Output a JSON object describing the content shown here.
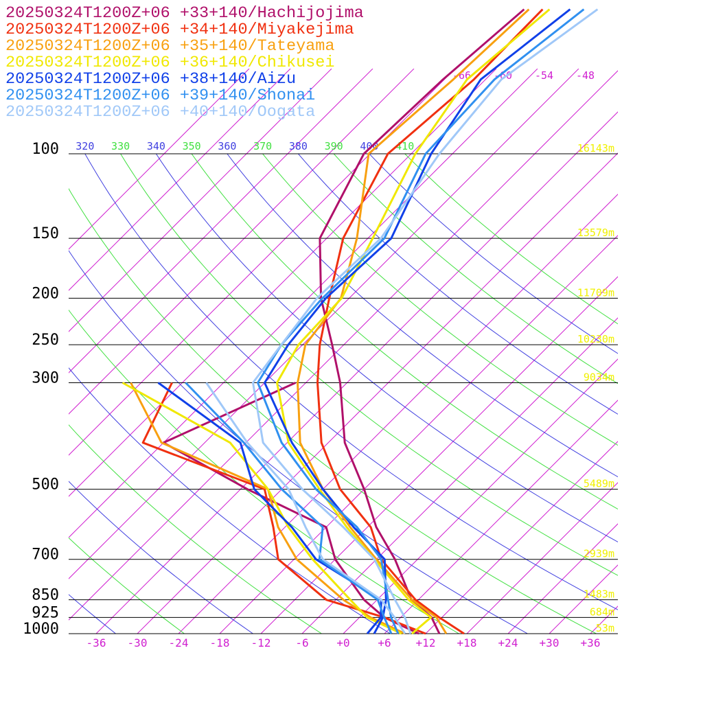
{
  "chart_data": {
    "type": "skewt",
    "yscale": "log",
    "ylim": [
      1000,
      100
    ],
    "yticks": [
      1000,
      925,
      850,
      700,
      500,
      300,
      250,
      200,
      150,
      100
    ],
    "height_labels": [
      "53m",
      "684m",
      "1483m",
      "2939m",
      "5489m",
      "9034m",
      "10230m",
      "11709m",
      "13579m",
      "16143m"
    ],
    "xlim": [
      -40,
      40
    ],
    "xticks": [
      -36,
      -30,
      -24,
      -18,
      -12,
      -6,
      {
        "value": 0,
        "label": "+0"
      },
      {
        "value": 6,
        "label": "+6"
      },
      {
        "value": 12,
        "label": "+12"
      },
      {
        "value": 18,
        "label": "+18"
      },
      {
        "value": 24,
        "label": "+24"
      },
      {
        "value": 30,
        "label": "+30"
      },
      {
        "value": 36,
        "label": "+36"
      }
    ],
    "isotherms": [
      -96,
      -90,
      -84,
      -78,
      -72,
      -66,
      -60,
      -54,
      -48,
      -42,
      -36,
      -30,
      -24,
      -18,
      -12,
      -6,
      0,
      6,
      12,
      18,
      24,
      30,
      36
    ],
    "isotherm_labels": [
      -66,
      -60,
      -54,
      -48
    ],
    "isotherm_color": "#d020d0",
    "dry_adiabats": [
      240,
      250,
      260,
      270,
      280,
      290,
      300,
      310,
      320,
      330,
      340,
      350,
      360,
      370,
      380,
      390,
      400,
      410
    ],
    "adiabat_colors": [
      "#4040e0",
      "#40e040"
    ],
    "height_label_color": "#f0f000",
    "levels": [
      1000,
      925,
      850,
      700,
      600,
      500,
      400,
      300,
      250,
      200,
      150,
      100,
      70,
      50
    ],
    "series": [
      {
        "name": "20250324T1200Z+06 +33+140/Hachijojima",
        "color": "#b0106a",
        "temperature": [
          14,
          10.5,
          5,
          -3.3,
          -10.7,
          -18,
          -27.6,
          -37,
          -43.7,
          -52.1,
          -61,
          -66.9,
          -66.2,
          -64.6
        ],
        "dewpoint": [
          11,
          3.6,
          -1.9,
          -12,
          -18,
          -35,
          -54,
          -43.5,
          null,
          null,
          null,
          null,
          null,
          null
        ]
      },
      {
        "name": "20250324T1200Z+06 +34+140/Miyakejima",
        "color": "#f03010",
        "temperature": [
          17.6,
          11.6,
          5.6,
          -5.3,
          -11.5,
          -21.5,
          -31,
          -40.3,
          -45.5,
          -50.9,
          -57.6,
          -63.4,
          -61.7,
          -61.9
        ],
        "dewpoint": [
          12,
          3.6,
          -7.4,
          -20.3,
          -25.7,
          -32.5,
          -57,
          -61.5,
          null,
          null,
          null,
          null,
          null,
          null
        ]
      },
      {
        "name": "20250324T1200Z+06 +35+140/Tateyama",
        "color": "#f8a010",
        "temperature": [
          15,
          11.2,
          5.1,
          -6,
          -14.5,
          -24,
          -34.1,
          -43.2,
          -47.6,
          -49.2,
          -55.6,
          -66.2,
          -64.7,
          -63.9
        ],
        "dewpoint": [
          9,
          1.6,
          -4.9,
          -17.6,
          -25,
          -32,
          -54.3,
          -67.5,
          null,
          null,
          null,
          null,
          null,
          null
        ]
      },
      {
        "name": "20250324T1200Z+06 +36+140/Chikusei",
        "color": "#f0e800",
        "temperature": [
          10,
          10.4,
          4.6,
          -6.3,
          -15,
          -24.5,
          -35.8,
          -46.2,
          -48.6,
          -49.1,
          -53.3,
          -59.4,
          -62.7,
          -60.9
        ],
        "dewpoint": [
          8.5,
          1.1,
          -3.9,
          -15.3,
          -23.5,
          -32,
          -44.3,
          -68.7,
          null,
          null,
          null,
          null,
          null,
          null
        ]
      },
      {
        "name": "20250324T1200Z+06 +38+140/Aizu",
        "color": "#1040e8",
        "temperature": [
          4.5,
          3.4,
          1.3,
          -4.8,
          -14,
          -24,
          -35.3,
          -48,
          -50.1,
          -51.4,
          -50.6,
          -57.1,
          -60.7,
          -57.9
        ],
        "dewpoint": [
          3.5,
          3.1,
          0.6,
          -14.8,
          -23,
          -34,
          -42.8,
          -63.5,
          null,
          null,
          null,
          null,
          null,
          null
        ]
      },
      {
        "name": "20250324T1200Z+06 +39+140/Shonai",
        "color": "#3090f0",
        "temperature": [
          8,
          4.6,
          1.6,
          -5.3,
          -13.5,
          -25,
          -36.8,
          -49,
          -51.1,
          -51.9,
          -51.6,
          -57.9,
          -58.7,
          -55.9
        ],
        "dewpoint": [
          7,
          3.6,
          0.1,
          -14.3,
          -18.5,
          -30,
          -42.3,
          -59.5,
          null,
          null,
          null,
          null,
          null,
          null
        ]
      },
      {
        "name": "20250324T1200Z+06 +40+140/Oogata",
        "color": "#a0c8f8",
        "temperature": [
          9.8,
          6.6,
          2.6,
          -6.3,
          -15.5,
          -27,
          -39.5,
          -49.7,
          -51.1,
          -52.7,
          -52.1,
          -55.9,
          -57.7,
          -53.9
        ],
        "dewpoint": [
          9,
          5.1,
          0.6,
          -13.8,
          -21,
          -29,
          -41.8,
          -56.5,
          null,
          null,
          null,
          null,
          null,
          null
        ]
      }
    ]
  }
}
